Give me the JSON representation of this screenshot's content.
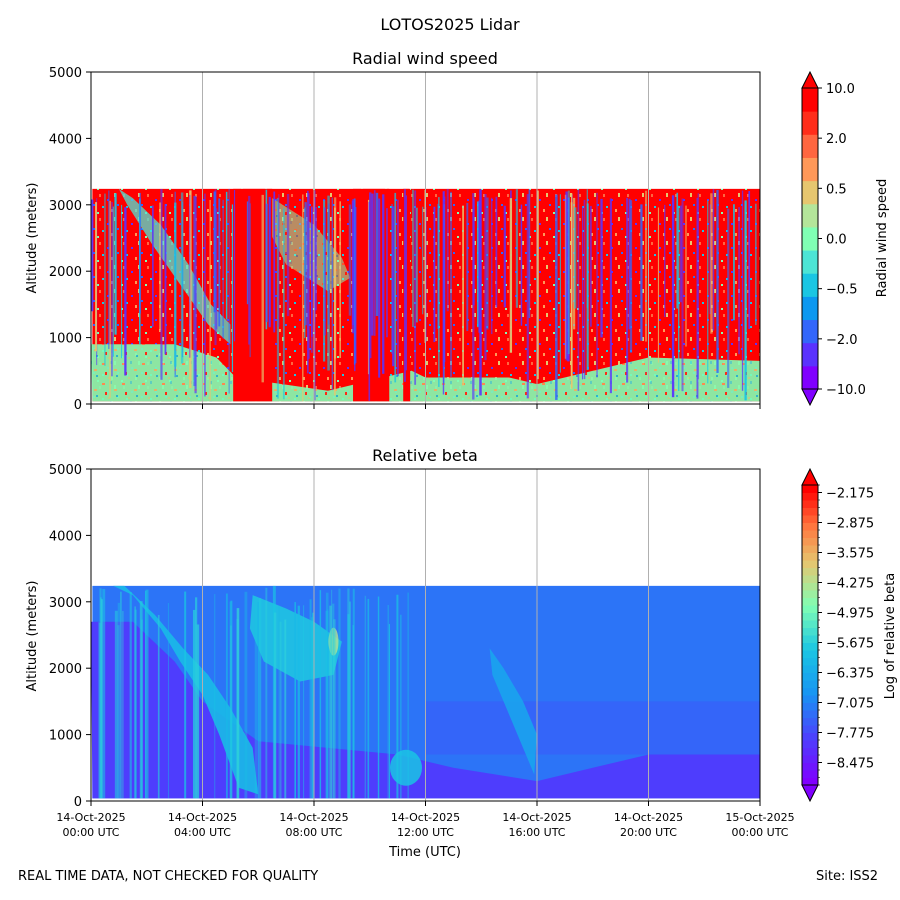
{
  "figure": {
    "suptitle": "LOTOS2025 Lidar",
    "footer_left": "REAL TIME DATA, NOT CHECKED FOR QUALITY",
    "footer_right": "Site: ISS2"
  },
  "chart_data": [
    {
      "type": "heatmap",
      "title": "Radial wind speed",
      "xlabel": "",
      "ylabel": "Altitude (meters)",
      "ylim": [
        0,
        5000
      ],
      "yticks": [
        0,
        1000,
        2000,
        3000,
        4000,
        5000
      ],
      "xlim_hours": [
        0,
        24
      ],
      "xtick_hours": [
        0,
        4,
        8,
        12,
        16,
        20,
        24
      ],
      "show_xtick_labels": false,
      "grid": "vertical lines at x ticks",
      "data_top_m": 3240,
      "data_bottom_m": 40,
      "colorbar": {
        "label": "Radial wind speed",
        "levels": [
          -10.0,
          -5.0,
          -2.0,
          -1.0,
          -0.5,
          -0.25,
          0.0,
          0.25,
          0.5,
          1.0,
          2.0,
          5.0,
          10.0
        ],
        "tick_labels": [
          "−10.0",
          "−2.0",
          "−0.5",
          "0.0",
          "0.5",
          "2.0",
          "10.0"
        ],
        "tick_values": [
          -10.0,
          -2.0,
          -0.5,
          0.0,
          0.5,
          2.0,
          10.0
        ],
        "colors": [
          "#8000ff",
          "#5a33fe",
          "#3366fa",
          "#0c98f0",
          "#1ac6e3",
          "#4ce5d5",
          "#80ffb4",
          "#b4e59a",
          "#e6c66f",
          "#ff9858",
          "#ff6640",
          "#ff2d1a",
          "#ff0000"
        ],
        "extend": "both"
      },
      "description_values": {
        "dominant": "high positive speeds (red) above ~1000 m throughout the day",
        "low_layer": "near-zero speeds (green/cyan) below ~400-700 m after 12:00 UTC",
        "early_feature": "sloping near-zero band descending from ~3200 m at 01:00 to ~1200 m at 05:00 UTC"
      }
    },
    {
      "type": "heatmap",
      "title": "Relative beta",
      "xlabel": "Time (UTC)",
      "ylabel": "Altitude (meters)",
      "ylim": [
        0,
        5000
      ],
      "yticks": [
        0,
        1000,
        2000,
        3000,
        4000,
        5000
      ],
      "xlim_hours": [
        0,
        24
      ],
      "xtick_hours": [
        0,
        4,
        8,
        12,
        16,
        20,
        24
      ],
      "xtick_labels": [
        [
          "14-Oct-2025",
          "00:00 UTC"
        ],
        [
          "14-Oct-2025",
          "04:00 UTC"
        ],
        [
          "14-Oct-2025",
          "08:00 UTC"
        ],
        [
          "14-Oct-2025",
          "12:00 UTC"
        ],
        [
          "14-Oct-2025",
          "16:00 UTC"
        ],
        [
          "14-Oct-2025",
          "20:00 UTC"
        ],
        [
          "15-Oct-2025",
          "00:00 UTC"
        ]
      ],
      "grid": "vertical lines at x ticks",
      "data_top_m": 3240,
      "data_bottom_m": 40,
      "colorbar": {
        "label": "Log of relative beta",
        "range": [
          -9.0,
          -2.0
        ],
        "tick_values": [
          -2.175,
          -2.875,
          -3.575,
          -4.275,
          -4.975,
          -5.675,
          -6.375,
          -7.075,
          -7.775,
          -8.475
        ],
        "tick_labels": [
          "−2.175",
          "−2.875",
          "−3.575",
          "−4.275",
          "−4.975",
          "−5.675",
          "−6.375",
          "−7.075",
          "−7.775",
          "−8.475"
        ],
        "extend": "both"
      },
      "description_values": {
        "background": "about -7.3 (light blue) above the boundary layer",
        "boundary_layer": "about -8.0 (blue) below ~700 m after 12:00 UTC",
        "aerosol_layer": "about -6.0 (green) sloping layer from ~3200 m at 01:00 to ~100 m at 06:00 UTC and ~2500 m layer 06:00-09:00 UTC",
        "late_plume": "about -6.5 at 1000-2300 m between 14:30 and 16:00 UTC"
      }
    }
  ]
}
